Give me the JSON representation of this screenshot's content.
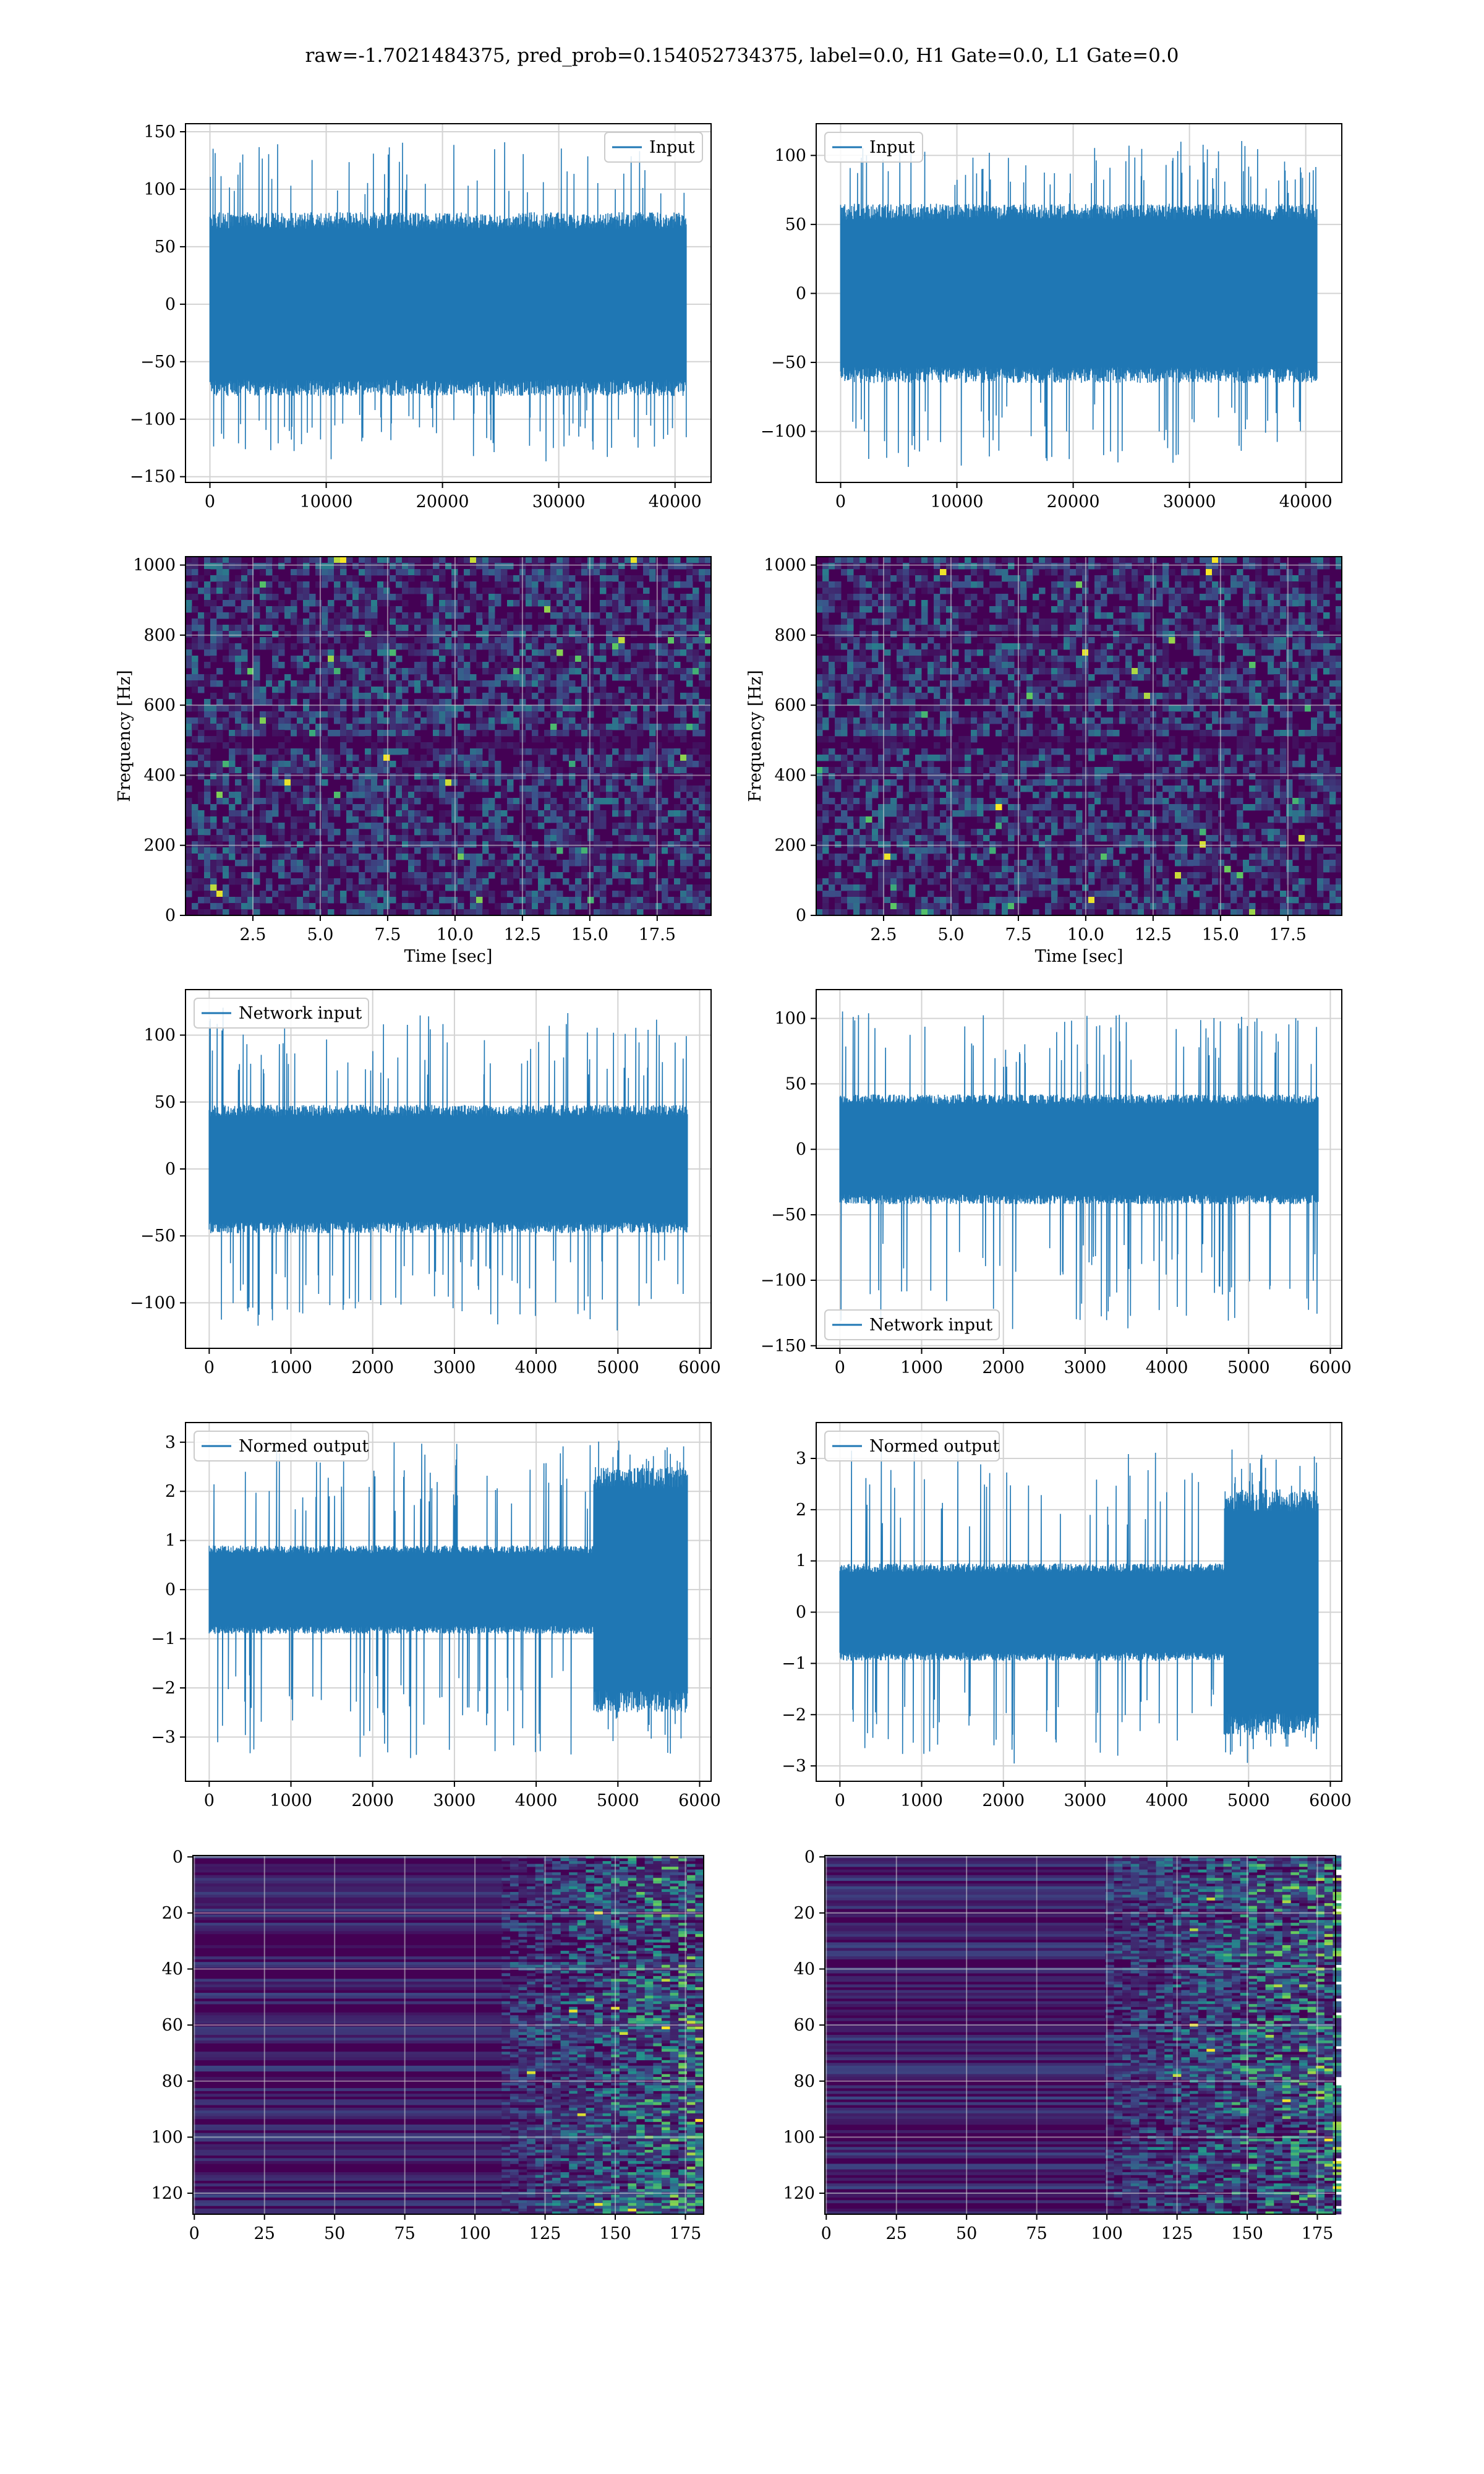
{
  "figure": {
    "suptitle": "raw=-1.7021484375, pred_prob=0.154052734375, label=0.0, H1 Gate=0.0, L1 Gate=0.0",
    "colors": {
      "line": "#1f77b4",
      "grid": "#d3d3d3",
      "viridis_low": "#440154",
      "viridis_mid": "#21918c",
      "viridis_high": "#fde725"
    }
  },
  "chart_data": [
    {
      "id": "input-h1",
      "type": "line",
      "series": [
        {
          "name": "Input",
          "style": "dense-noise",
          "n": 40960,
          "x": [
            0,
            40960
          ],
          "amplitude": 80,
          "peak_max": 145,
          "peak_min": -140
        }
      ],
      "legend": "upper right",
      "xlim": [
        -2100,
        43100
      ],
      "ylim": [
        -155,
        157
      ],
      "xticks": [
        0,
        10000,
        20000,
        30000,
        40000
      ],
      "xtick_labels": [
        "0",
        "10000",
        "20000",
        "30000",
        "40000"
      ],
      "yticks": [
        -150,
        -100,
        -50,
        0,
        50,
        100,
        150
      ],
      "ytick_labels": [
        "−150",
        "−100",
        "−50",
        "0",
        "50",
        "100",
        "150"
      ],
      "xlabel": "",
      "ylabel": "",
      "grid": true
    },
    {
      "id": "input-l1",
      "type": "line",
      "series": [
        {
          "name": "Input",
          "style": "dense-noise",
          "n": 40960,
          "x": [
            0,
            40960
          ],
          "amplitude": 65,
          "peak_max": 112,
          "peak_min": -130
        }
      ],
      "legend": "upper left",
      "xlim": [
        -2100,
        43100
      ],
      "ylim": [
        -137,
        123
      ],
      "xticks": [
        0,
        10000,
        20000,
        30000,
        40000
      ],
      "xtick_labels": [
        "0",
        "10000",
        "20000",
        "30000",
        "40000"
      ],
      "yticks": [
        -100,
        -50,
        0,
        50,
        100
      ],
      "ytick_labels": [
        "−100",
        "−50",
        "0",
        "50",
        "100"
      ],
      "xlabel": "",
      "ylabel": "",
      "grid": true
    },
    {
      "id": "spectrogram-h1",
      "type": "heatmap",
      "xlim": [
        0,
        19.5
      ],
      "ylim": [
        0,
        1024
      ],
      "xticks": [
        2.5,
        5.0,
        7.5,
        10.0,
        12.5,
        15.0,
        17.5
      ],
      "xtick_labels": [
        "2.5",
        "5.0",
        "7.5",
        "10.0",
        "12.5",
        "15.0",
        "17.5"
      ],
      "yticks": [
        0,
        200,
        400,
        600,
        800,
        1000
      ],
      "ytick_labels": [
        "0",
        "200",
        "400",
        "600",
        "800",
        "1000"
      ],
      "xlabel": "Time [sec]",
      "ylabel": "Frequency [Hz]",
      "grid": true,
      "colormap": "viridis",
      "dark_band_hz": [
        500,
        1000
      ]
    },
    {
      "id": "spectrogram-l1",
      "type": "heatmap",
      "xlim": [
        0,
        19.5
      ],
      "ylim": [
        0,
        1024
      ],
      "xticks": [
        2.5,
        5.0,
        7.5,
        10.0,
        12.5,
        15.0,
        17.5
      ],
      "xtick_labels": [
        "2.5",
        "5.0",
        "7.5",
        "10.0",
        "12.5",
        "15.0",
        "17.5"
      ],
      "yticks": [
        0,
        200,
        400,
        600,
        800,
        1000
      ],
      "ytick_labels": [
        "0",
        "200",
        "400",
        "600",
        "800",
        "1000"
      ],
      "xlabel": "Time [sec]",
      "ylabel": "Frequency [Hz]",
      "grid": true,
      "colormap": "viridis",
      "dark_band_hz": [
        500,
        1000
      ]
    },
    {
      "id": "network-input-h1",
      "type": "line",
      "series": [
        {
          "name": "Network input",
          "style": "dense-noise",
          "n": 5850,
          "x": [
            0,
            5850
          ],
          "amplitude": 48,
          "peak_max": 122,
          "peak_min": -122
        }
      ],
      "legend": "upper left",
      "xlim": [
        -290,
        6140
      ],
      "ylim": [
        -134,
        134
      ],
      "xticks": [
        0,
        1000,
        2000,
        3000,
        4000,
        5000,
        6000
      ],
      "xtick_labels": [
        "0",
        "1000",
        "2000",
        "3000",
        "4000",
        "5000",
        "6000"
      ],
      "yticks": [
        -100,
        -50,
        0,
        50,
        100
      ],
      "ytick_labels": [
        "−100",
        "−50",
        "0",
        "50",
        "100"
      ],
      "xlabel": "",
      "ylabel": "",
      "grid": true
    },
    {
      "id": "network-input-l1",
      "type": "line",
      "series": [
        {
          "name": "Network input",
          "style": "dense-noise",
          "n": 5850,
          "x": [
            0,
            5850
          ],
          "amplitude": 42,
          "peak_max": 107,
          "peak_min": -140
        }
      ],
      "legend": "lower left",
      "xlim": [
        -290,
        6140
      ],
      "ylim": [
        -152,
        122
      ],
      "xticks": [
        0,
        1000,
        2000,
        3000,
        4000,
        5000,
        6000
      ],
      "xtick_labels": [
        "0",
        "1000",
        "2000",
        "3000",
        "4000",
        "5000",
        "6000"
      ],
      "yticks": [
        -150,
        -100,
        -50,
        0,
        50,
        100
      ],
      "ytick_labels": [
        "−150",
        "−100",
        "−50",
        "0",
        "50",
        "100"
      ],
      "xlabel": "",
      "ylabel": "",
      "grid": true
    },
    {
      "id": "normed-output-h1",
      "type": "line",
      "series": [
        {
          "name": "Normed output",
          "style": "dense-noise-burst",
          "n": 5850,
          "x": [
            0,
            5850
          ],
          "amplitude": 0.9,
          "burst_start": 4700,
          "burst_amplitude": 2.5,
          "peak_max": 3.1,
          "peak_min": -3.5
        }
      ],
      "legend": "upper left",
      "xlim": [
        -290,
        6140
      ],
      "ylim": [
        -3.9,
        3.4
      ],
      "xticks": [
        0,
        1000,
        2000,
        3000,
        4000,
        5000,
        6000
      ],
      "xtick_labels": [
        "0",
        "1000",
        "2000",
        "3000",
        "4000",
        "5000",
        "6000"
      ],
      "yticks": [
        -3,
        -2,
        -1,
        0,
        1,
        2,
        3
      ],
      "ytick_labels": [
        "−3",
        "−2",
        "−1",
        "0",
        "1",
        "2",
        "3"
      ],
      "xlabel": "",
      "ylabel": "",
      "grid": true
    },
    {
      "id": "normed-output-l1",
      "type": "line",
      "series": [
        {
          "name": "Normed output",
          "style": "dense-noise-burst",
          "n": 5850,
          "x": [
            0,
            5850
          ],
          "amplitude": 0.95,
          "burst_start": 4700,
          "burst_amplitude": 2.4,
          "peak_max": 3.4,
          "peak_min": -3.0
        }
      ],
      "legend": "upper left",
      "xlim": [
        -290,
        6140
      ],
      "ylim": [
        -3.3,
        3.7
      ],
      "xticks": [
        0,
        1000,
        2000,
        3000,
        4000,
        5000,
        6000
      ],
      "xtick_labels": [
        "0",
        "1000",
        "2000",
        "3000",
        "4000",
        "5000",
        "6000"
      ],
      "yticks": [
        -3,
        -2,
        -1,
        0,
        1,
        2,
        3
      ],
      "ytick_labels": [
        "−3",
        "−2",
        "−1",
        "0",
        "1",
        "2",
        "3"
      ],
      "xlabel": "",
      "ylabel": "",
      "grid": true
    },
    {
      "id": "feature-map-h1",
      "type": "heatmap",
      "xlim": [
        -0.5,
        181.5
      ],
      "ylim": [
        127.5,
        -0.5
      ],
      "y_inverted": true,
      "xticks": [
        0,
        25,
        50,
        75,
        100,
        125,
        150,
        175
      ],
      "xtick_labels": [
        "0",
        "25",
        "50",
        "75",
        "100",
        "125",
        "150",
        "175"
      ],
      "yticks": [
        0,
        20,
        40,
        60,
        80,
        100,
        120
      ],
      "ytick_labels": [
        "0",
        "20",
        "40",
        "60",
        "80",
        "100",
        "120"
      ],
      "xlabel": "",
      "ylabel": "",
      "grid": true,
      "colormap": "viridis",
      "rows": 128,
      "cols": 182,
      "activity_start_col": 110
    },
    {
      "id": "feature-map-l1",
      "type": "heatmap",
      "xlim": [
        -0.5,
        181.5
      ],
      "ylim": [
        127.5,
        -0.5
      ],
      "y_inverted": true,
      "xticks": [
        0,
        25,
        50,
        75,
        100,
        125,
        150,
        175
      ],
      "xtick_labels": [
        "0",
        "25",
        "50",
        "75",
        "100",
        "125",
        "150",
        "175"
      ],
      "yticks": [
        0,
        20,
        40,
        60,
        80,
        100,
        120
      ],
      "ytick_labels": [
        "0",
        "20",
        "40",
        "60",
        "80",
        "100",
        "120"
      ],
      "xlabel": "",
      "ylabel": "",
      "grid": true,
      "colormap": "viridis",
      "rows": 128,
      "cols": 182,
      "activity_start_col": 100
    }
  ]
}
